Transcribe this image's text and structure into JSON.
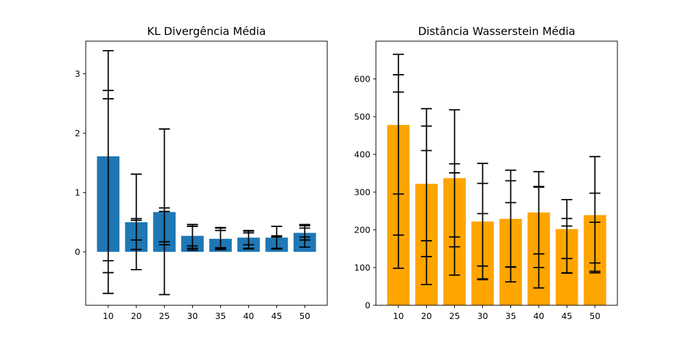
{
  "chart_data": [
    {
      "type": "bar",
      "title": "KL Divergência Média",
      "categories": [
        "10",
        "20",
        "25",
        "30",
        "35",
        "40",
        "45",
        "50"
      ],
      "values": [
        1.61,
        0.5,
        0.67,
        0.27,
        0.22,
        0.24,
        0.24,
        0.32
      ],
      "error_lines": [
        [
          2.72,
          2.58,
          -0.15,
          -0.35
        ],
        [
          0.56,
          0.53,
          0.2,
          0.04
        ],
        [
          0.74,
          0.68,
          0.17,
          0.12
        ],
        [
          0.46,
          0.43,
          0.1,
          0.06
        ],
        [
          0.4,
          0.36,
          0.07,
          0.05
        ],
        [
          0.35,
          0.32,
          0.12,
          0.05
        ],
        [
          0.27,
          0.25,
          0.06,
          0.05
        ],
        [
          0.44,
          0.4,
          0.25,
          0.2
        ]
      ],
      "error_range": [
        [
          -0.7,
          3.39
        ],
        [
          -0.3,
          1.31
        ],
        [
          -0.72,
          2.07
        ],
        [
          0.03,
          0.46
        ],
        [
          0.04,
          0.41
        ],
        [
          0.06,
          0.36
        ],
        [
          0.05,
          0.43
        ],
        [
          0.08,
          0.46
        ]
      ],
      "color": "#1f77b4",
      "ylim": [
        -0.9,
        3.55
      ],
      "yticks": [
        0,
        1,
        2,
        3
      ],
      "xlabel": "",
      "ylabel": ""
    },
    {
      "type": "bar",
      "title": "Distância Wasserstein Média",
      "categories": [
        "10",
        "20",
        "25",
        "30",
        "35",
        "40",
        "45",
        "50"
      ],
      "values": [
        478,
        322,
        337,
        222,
        229,
        246,
        202,
        239
      ],
      "error_lines": [
        [
          611,
          565,
          295,
          186
        ],
        [
          475,
          410,
          171,
          129
        ],
        [
          375,
          351,
          181,
          155
        ],
        [
          323,
          243,
          104,
          70
        ],
        [
          330,
          272,
          102,
          101
        ],
        [
          315,
          313,
          136,
          100
        ],
        [
          230,
          210,
          124,
          86
        ],
        [
          297,
          220,
          112,
          90
        ]
      ],
      "error_range": [
        [
          98,
          665
        ],
        [
          55,
          521
        ],
        [
          80,
          518
        ],
        [
          68,
          376
        ],
        [
          62,
          358
        ],
        [
          46,
          354
        ],
        [
          85,
          280
        ],
        [
          86,
          394
        ]
      ],
      "color": "#ffa500",
      "ylim": [
        0,
        700
      ],
      "yticks": [
        0,
        100,
        200,
        300,
        400,
        500,
        600
      ],
      "xlabel": "",
      "ylabel": ""
    }
  ]
}
